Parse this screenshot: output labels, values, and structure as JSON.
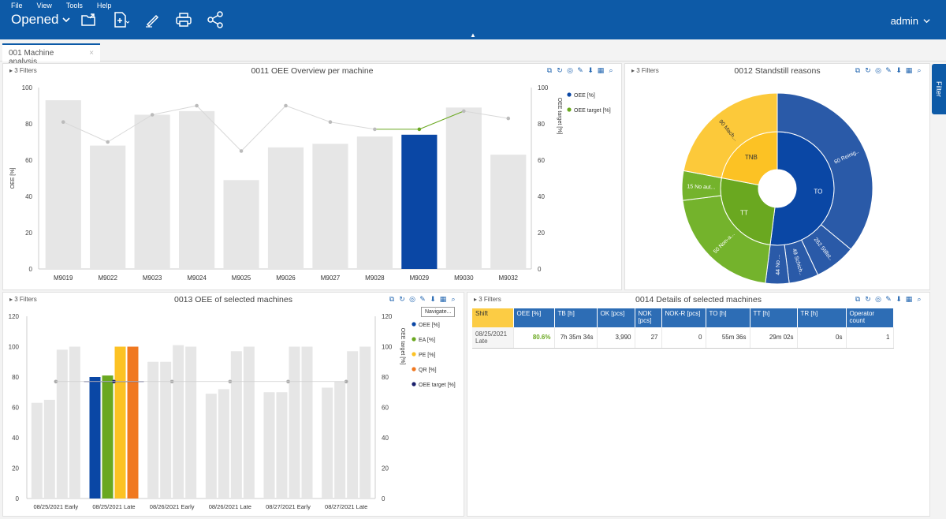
{
  "menu": [
    "File",
    "View",
    "Tools",
    "Help"
  ],
  "header": {
    "title": "Opened",
    "user": "admin"
  },
  "tab": {
    "label": "001 Machine analysis",
    "close": "×"
  },
  "filter_tab": "Filter",
  "panels": {
    "p1": {
      "filters": "3 Filters",
      "title": "0011 OEE Overview per machine"
    },
    "p2": {
      "filters": "3 Filters",
      "title": "0012 Standstill reasons"
    },
    "p3": {
      "filters": "3 Filters",
      "title": "0013 OEE of selected machines",
      "tooltip": "Navigate..."
    },
    "p4": {
      "filters": "3 Filters",
      "title": "0014 Details of selected machines"
    }
  },
  "colors": {
    "brand": "#0d5aa7",
    "bar_grey": "#e6e6e6",
    "bar_selected": "#0a47a5",
    "green": "#6aa820",
    "yellow": "#fcc224",
    "orange": "#f07820",
    "navy": "#1a1f6b",
    "sun_blue": "#2a5aa8"
  },
  "chart_data": [
    {
      "type": "bar",
      "title": "",
      "ylabel": "OEE [%]",
      "y2label": "OEE target [%]",
      "ylim": [
        0,
        100
      ],
      "categories": [
        "M9019",
        "M9022",
        "M9023",
        "M9024",
        "M9025",
        "M9026",
        "M9027",
        "M9028",
        "M9029",
        "M9030",
        "M9032"
      ],
      "series": [
        {
          "name": "OEE [%]",
          "type": "bar",
          "values": [
            93,
            68,
            85,
            87,
            49,
            67,
            69,
            73,
            74,
            89,
            63
          ],
          "highlight_index": 8
        },
        {
          "name": "OEE target [%]",
          "type": "line",
          "values": [
            81,
            70,
            85,
            90,
            65,
            90,
            81,
            77,
            77,
            87,
            83
          ]
        }
      ],
      "y_ticks": [
        0,
        20,
        40,
        60,
        80,
        100
      ]
    },
    {
      "type": "pie",
      "subtype": "sunburst",
      "inner": [
        {
          "label": "TO",
          "value": 52
        },
        {
          "label": "TT",
          "value": 26
        },
        {
          "label": "TNB",
          "value": 22
        }
      ],
      "outer": [
        {
          "label": "60 Reinig..",
          "value": 36,
          "parent": "TO"
        },
        {
          "label": "262 Stillst..",
          "value": 7,
          "parent": "TO"
        },
        {
          "label": "49 Schich..",
          "value": 5,
          "parent": "TO"
        },
        {
          "label": "44 No ...",
          "value": 4,
          "parent": "TO"
        },
        {
          "label": "50 Non-a...",
          "value": 21,
          "parent": "TT"
        },
        {
          "label": "15 No aut...",
          "value": 5,
          "parent": "TT"
        },
        {
          "label": "90 Mach...",
          "value": 22,
          "parent": "TNB"
        }
      ]
    },
    {
      "type": "bar",
      "title": "",
      "ylabel": "",
      "y2label": "OEE target [%]",
      "ylim": [
        0,
        120
      ],
      "y_ticks": [
        0,
        20,
        40,
        60,
        80,
        100,
        120
      ],
      "categories": [
        "08/25/2021 Early",
        "08/25/2021 Late",
        "08/26/2021 Early",
        "08/26/2021 Late",
        "08/27/2021 Early",
        "08/27/2021 Late"
      ],
      "series": [
        {
          "name": "OEE [%]",
          "values": [
            63,
            80,
            90,
            69,
            70,
            73
          ]
        },
        {
          "name": "EA [%]",
          "values": [
            65,
            81,
            90,
            72,
            70,
            77
          ]
        },
        {
          "name": "PE [%]",
          "values": [
            98,
            100,
            101,
            97,
            100,
            97
          ]
        },
        {
          "name": "QR [%]",
          "values": [
            100,
            100,
            100,
            100,
            100,
            100
          ]
        },
        {
          "name": "OEE target [%]",
          "type": "line",
          "values": [
            77,
            77,
            77,
            77,
            77,
            77
          ]
        }
      ],
      "highlight_category": 1
    }
  ],
  "table": {
    "headers": [
      "Shift",
      "OEE [%]",
      "TB [h]",
      "OK [pcs]",
      "NOK [pcs]",
      "NOK-R [pcs]",
      "TO [h]",
      "TT [h]",
      "TR [h]",
      "Operator count"
    ],
    "rows": [
      {
        "shift": "08/25/2021 Late",
        "oee": "80.6%",
        "tb": "7h 35m 34s",
        "ok": "3,990",
        "nok": "27",
        "nokr": "0",
        "to": "55m 36s",
        "tt": "29m 02s",
        "tr": "0s",
        "ops": "1"
      }
    ]
  }
}
